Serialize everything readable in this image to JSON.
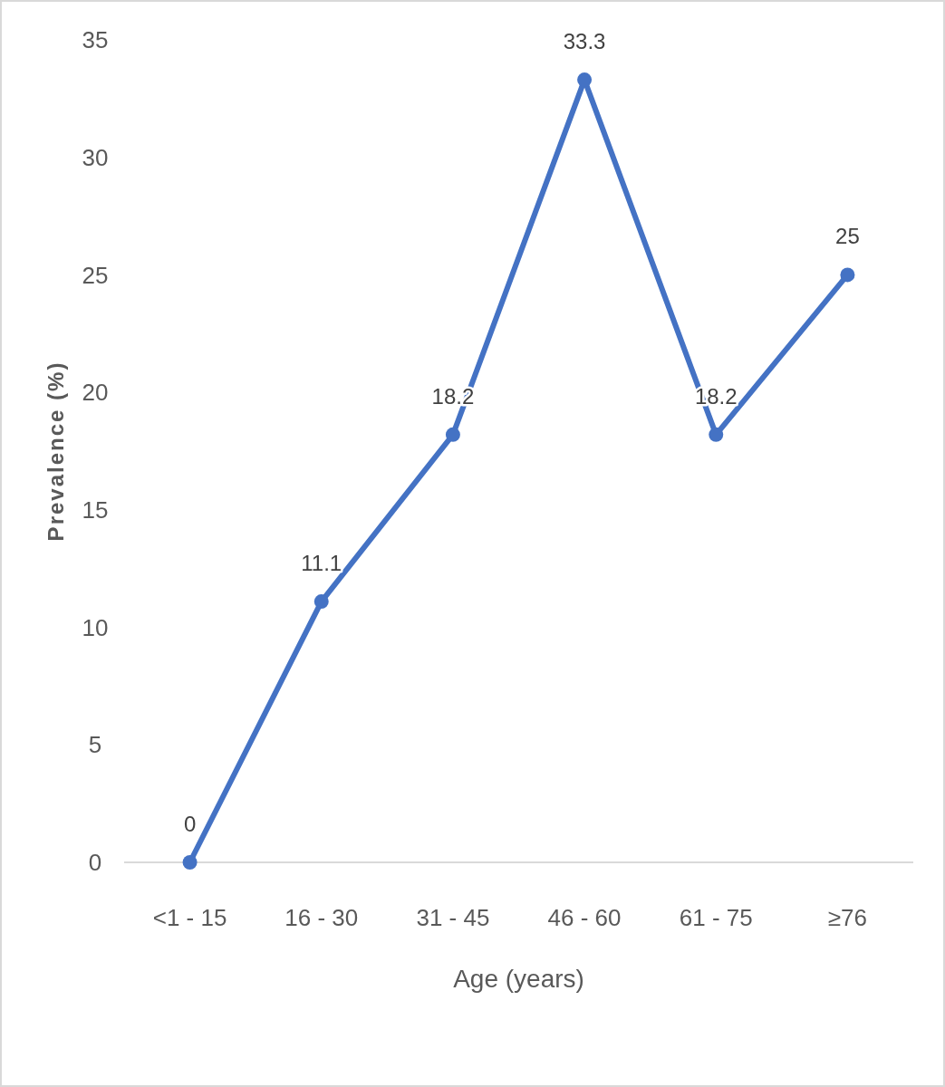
{
  "chart_data": {
    "type": "line",
    "xlabel": "Age (years)",
    "ylabel": "Prevalence (%)",
    "categories": [
      "<1 - 15",
      "16 - 30",
      "31 - 45",
      "46 - 60",
      "61 - 75",
      "≥76"
    ],
    "series": [
      {
        "color": "#4472c4",
        "values": [
          0,
          11.1,
          18.2,
          33.3,
          18.2,
          25
        ]
      }
    ],
    "ylim": [
      0,
      35
    ],
    "yticks": [
      0,
      5,
      10,
      15,
      20,
      25,
      30,
      35
    ],
    "grid": false,
    "marker": "circle",
    "line_style": "solid",
    "data_labels": true
  }
}
